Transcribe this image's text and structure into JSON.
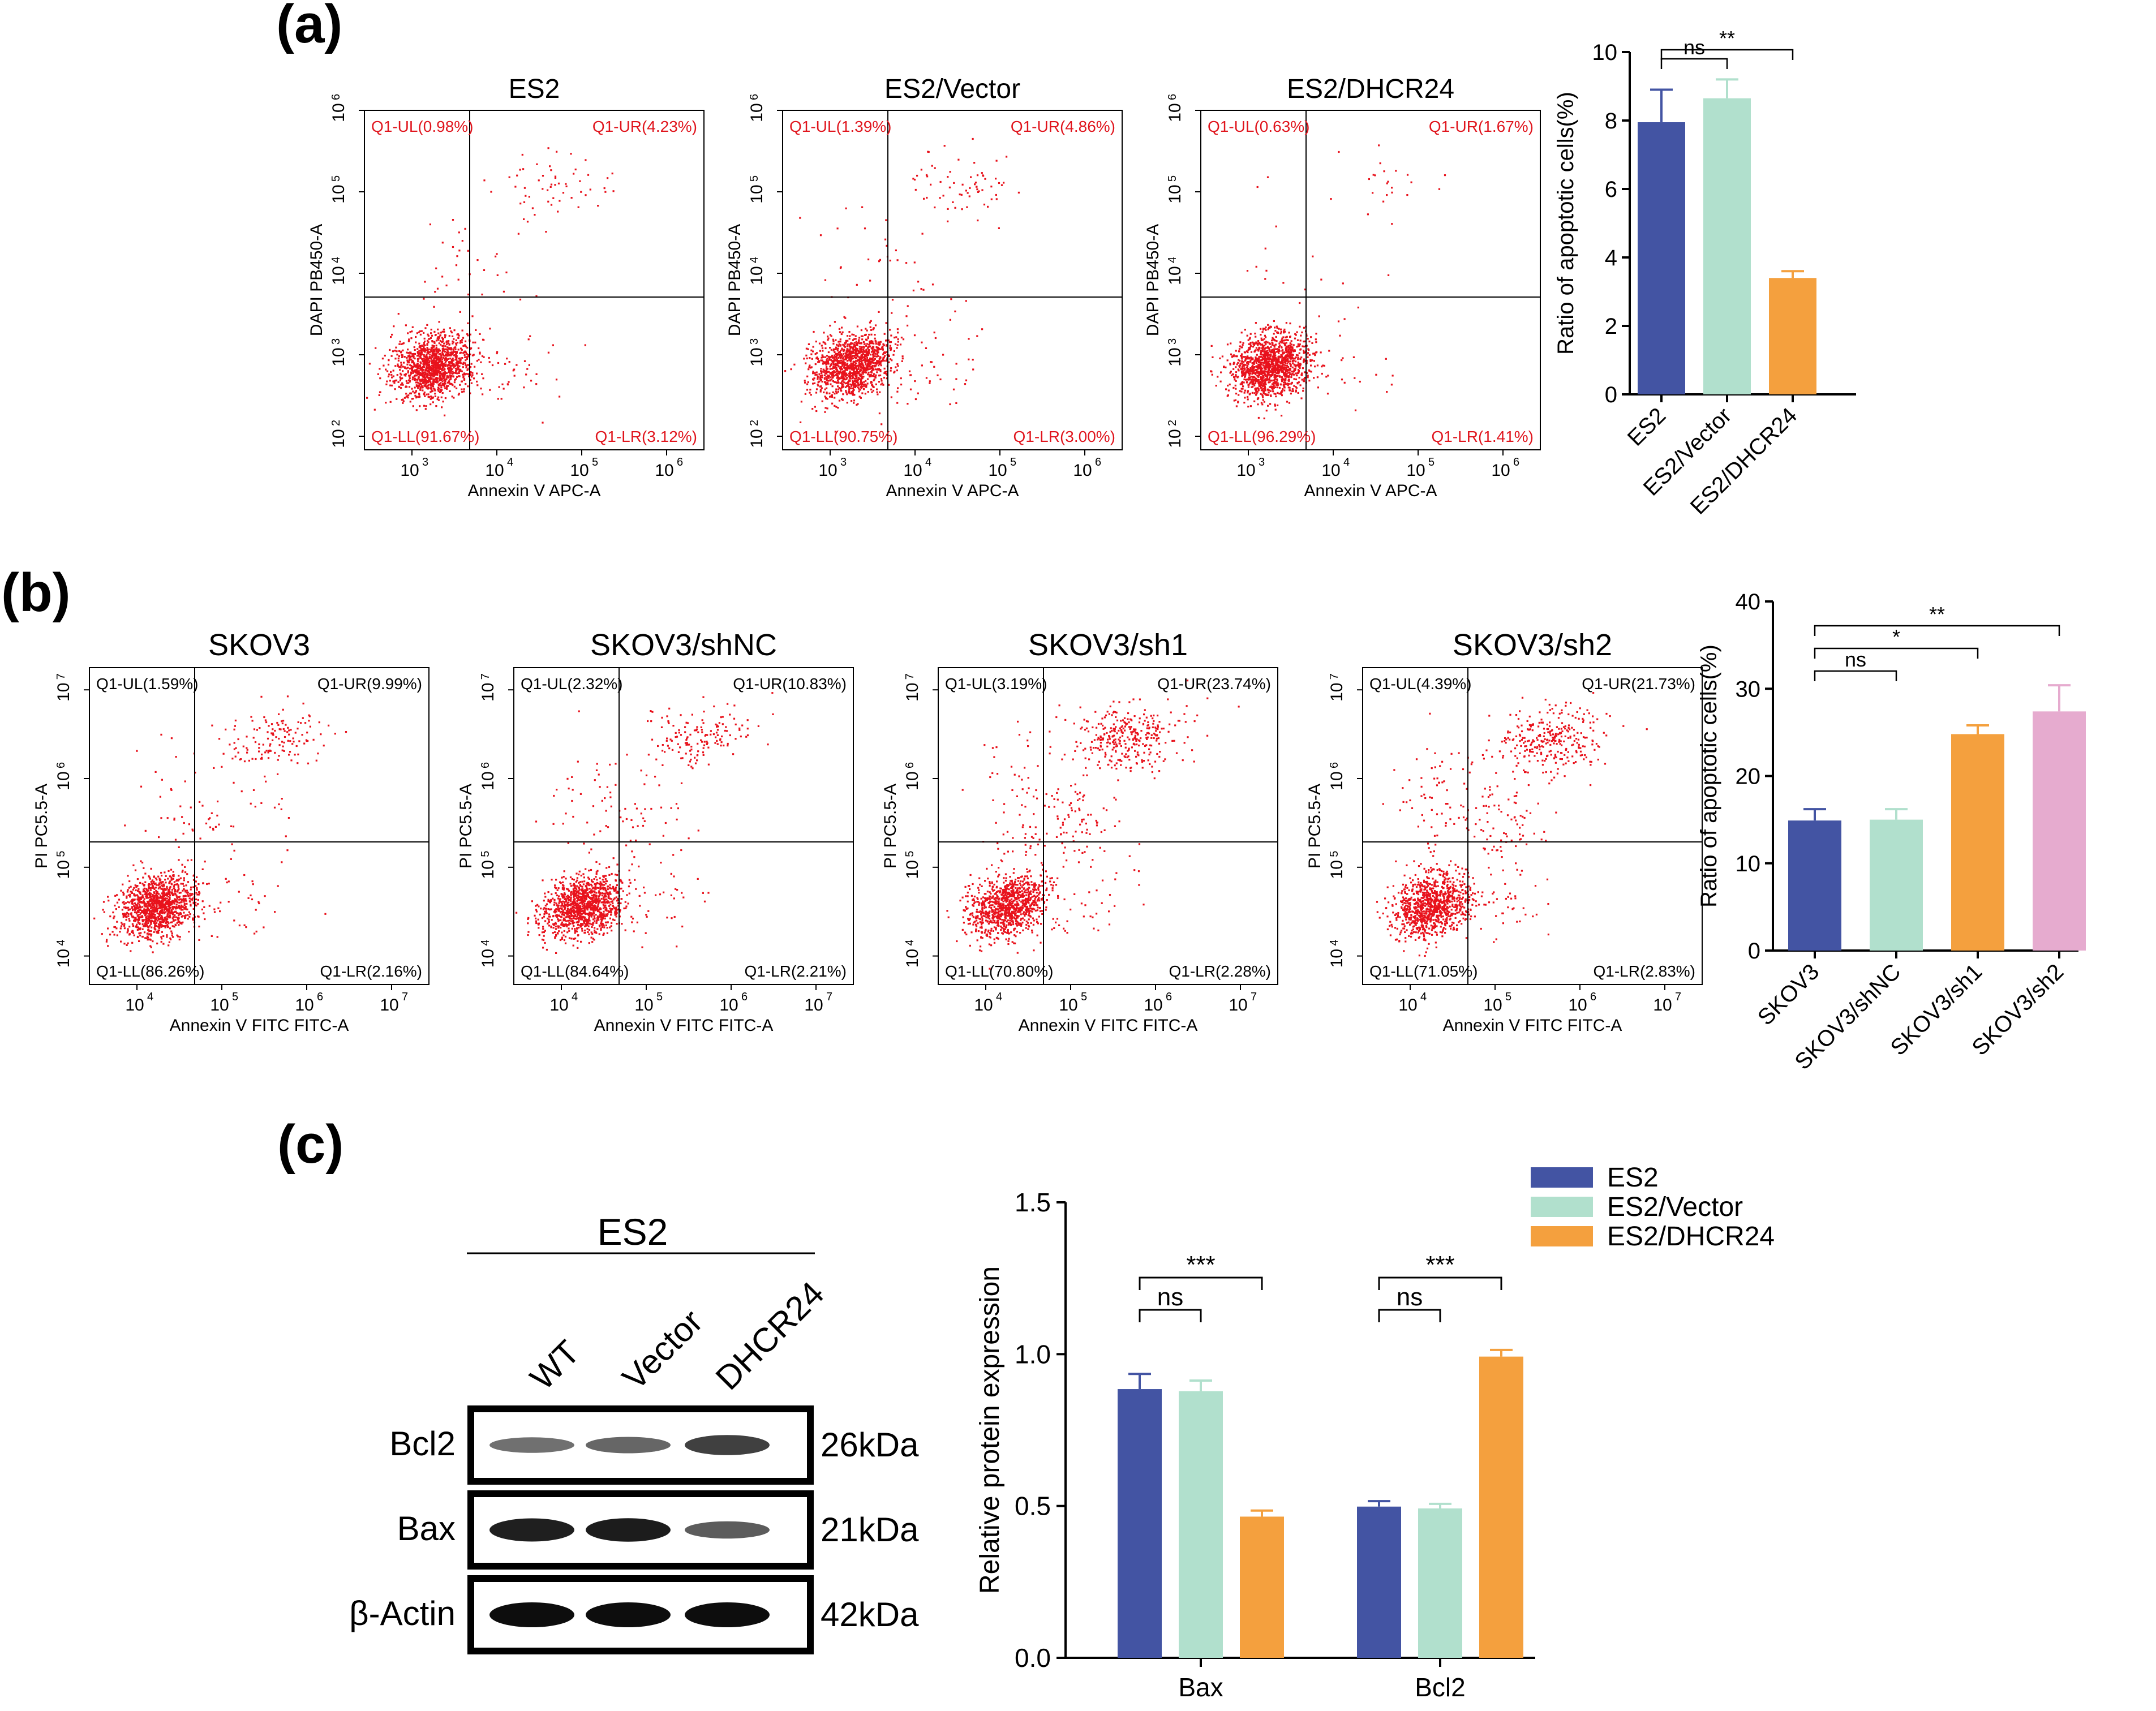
{
  "colors": {
    "es2": "#4354a3",
    "vector": "#b1e0cd",
    "dhcr24": "#f4a03e",
    "sh2": "#e6abcf",
    "dots": "#e8121c",
    "quad_label_red": "#e0151d",
    "axis": "#111111"
  },
  "panel_labels": {
    "a": "(a)",
    "b": "(b)",
    "c": "(c)"
  },
  "flow_plots": [
    {
      "title": "ES2",
      "ylabel": "DAPI PB450-A",
      "xlabel": "Annexin V APC-A",
      "ul": "Q1-UL(0.98%)",
      "ur": "Q1-UR(4.23%)",
      "ll": "Q1-LL(91.67%)",
      "lr": "Q1-LR(3.12%)",
      "xticks": [
        "10",
        "10",
        "10",
        "10"
      ],
      "xexp": [
        "3",
        "4",
        "5",
        "6"
      ],
      "yticks": [
        "10",
        "10",
        "10",
        "10",
        "10"
      ],
      "yexp": [
        "2",
        "3",
        "4",
        "5",
        "6"
      ]
    },
    {
      "title": "ES2/Vector",
      "ylabel": "DAPI PB450-A",
      "xlabel": "Annexin V APC-A",
      "ul": "Q1-UL(1.39%)",
      "ur": "Q1-UR(4.86%)",
      "ll": "Q1-LL(90.75%)",
      "lr": "Q1-LR(3.00%)",
      "xticks": [
        "10",
        "10",
        "10",
        "10"
      ],
      "xexp": [
        "3",
        "4",
        "5",
        "6"
      ],
      "yticks": [
        "10",
        "10",
        "10",
        "10",
        "10"
      ],
      "yexp": [
        "2",
        "3",
        "4",
        "5",
        "6"
      ]
    },
    {
      "title": "ES2/DHCR24",
      "ylabel": "DAPI PB450-A",
      "xlabel": "Annexin V APC-A",
      "ul": "Q1-UL(0.63%)",
      "ur": "Q1-UR(1.67%)",
      "ll": "Q1-LL(96.29%)",
      "lr": "Q1-LR(1.41%)",
      "xticks": [
        "10",
        "10",
        "10",
        "10"
      ],
      "xexp": [
        "3",
        "4",
        "5",
        "6"
      ],
      "yticks": [
        "10",
        "10",
        "10",
        "10",
        "10"
      ],
      "yexp": [
        "2",
        "3",
        "4",
        "5",
        "6"
      ]
    },
    {
      "title": "SKOV3",
      "ylabel": "PI PC5.5-A",
      "xlabel": "Annexin V FITC FITC-A",
      "ul": "Q1-UL(1.59%)",
      "ur": "Q1-UR(9.99%)",
      "ll": "Q1-LL(86.26%)",
      "lr": "Q1-LR(2.16%)",
      "xticks": [
        "10",
        "10",
        "10",
        "10"
      ],
      "xexp": [
        "4",
        "5",
        "6",
        "7"
      ],
      "yticks": [
        "10",
        "10",
        "10",
        "10"
      ],
      "yexp": [
        "4",
        "5",
        "6",
        "7"
      ]
    },
    {
      "title": "SKOV3/shNC",
      "ylabel": "PI PC5.5-A",
      "xlabel": "Annexin V FITC FITC-A",
      "ul": "Q1-UL(2.32%)",
      "ur": "Q1-UR(10.83%)",
      "ll": "Q1-LL(84.64%)",
      "lr": "Q1-LR(2.21%)",
      "xticks": [
        "10",
        "10",
        "10",
        "10"
      ],
      "xexp": [
        "4",
        "5",
        "6",
        "7"
      ],
      "yticks": [
        "10",
        "10",
        "10",
        "10"
      ],
      "yexp": [
        "4",
        "5",
        "6",
        "7"
      ]
    },
    {
      "title": "SKOV3/sh1",
      "ylabel": "PI PC5.5-A",
      "xlabel": "Annexin V FITC FITC-A",
      "ul": "Q1-UL(3.19%)",
      "ur": "Q1-UR(23.74%)",
      "ll": "Q1-LL(70.80%)",
      "lr": "Q1-LR(2.28%)",
      "xticks": [
        "10",
        "10",
        "10",
        "10"
      ],
      "xexp": [
        "4",
        "5",
        "6",
        "7"
      ],
      "yticks": [
        "10",
        "10",
        "10",
        "10"
      ],
      "yexp": [
        "4",
        "5",
        "6",
        "7"
      ]
    },
    {
      "title": "SKOV3/sh2",
      "ylabel": "PI PC5.5-A",
      "xlabel": "Annexin V FITC FITC-A",
      "ul": "Q1-UL(4.39%)",
      "ur": "Q1-UR(21.73%)",
      "ll": "Q1-LL(71.05%)",
      "lr": "Q1-LR(2.83%)",
      "xticks": [
        "10",
        "10",
        "10",
        "10"
      ],
      "xexp": [
        "4",
        "5",
        "6",
        "7"
      ],
      "yticks": [
        "10",
        "10",
        "10",
        "10"
      ],
      "yexp": [
        "4",
        "5",
        "6",
        "7"
      ]
    }
  ],
  "western_blot": {
    "group_label": "ES2",
    "lanes": [
      "WT",
      "Vector",
      "DHCR24"
    ],
    "rows": [
      {
        "protein": "Bcl2",
        "size": "26kDa",
        "intensity": [
          0.45,
          0.5,
          0.72
        ]
      },
      {
        "protein": "Bax",
        "size": "21kDa",
        "intensity": [
          0.9,
          0.92,
          0.55
        ]
      },
      {
        "protein": "β-Actin",
        "size": "42kDa",
        "intensity": [
          1.0,
          1.0,
          1.0
        ]
      }
    ]
  },
  "chart_data": [
    {
      "type": "bar",
      "title": "",
      "categories": [
        "ES2",
        "ES2/Vector",
        "ES2/DHCR24"
      ],
      "values": [
        7.95,
        8.65,
        3.4
      ],
      "errors": [
        0.95,
        0.55,
        0.2
      ],
      "ylabel": "Ratio of apoptotic cells(%)",
      "xlabel": "",
      "ylim": [
        0,
        10
      ],
      "yticks": [
        "0",
        "2",
        "4",
        "6",
        "8",
        "10"
      ],
      "significance": [
        {
          "from": 0,
          "to": 1,
          "label": "ns"
        },
        {
          "from": 0,
          "to": 2,
          "label": "**"
        }
      ]
    },
    {
      "type": "bar",
      "title": "",
      "categories": [
        "SKOV3",
        "SKOV3/shNC",
        "SKOV3/sh1",
        "SKOV3/sh2"
      ],
      "values": [
        14.9,
        15.0,
        24.8,
        27.4
      ],
      "errors": [
        1.3,
        1.2,
        1.0,
        3.0
      ],
      "ylabel": "Ratio of apoptotic cells(%)",
      "xlabel": "",
      "ylim": [
        0,
        40
      ],
      "yticks": [
        "0",
        "10",
        "20",
        "30",
        "40"
      ],
      "significance": [
        {
          "from": 0,
          "to": 1,
          "label": "ns"
        },
        {
          "from": 0,
          "to": 2,
          "label": "*"
        },
        {
          "from": 0,
          "to": 3,
          "label": "**"
        }
      ]
    },
    {
      "type": "bar",
      "title": "",
      "categories": [
        "Bax",
        "Bcl2"
      ],
      "series": [
        {
          "name": "ES2",
          "values": [
            0.885,
            0.498
          ],
          "errors": [
            0.05,
            0.018
          ]
        },
        {
          "name": "ES2/Vector",
          "values": [
            0.878,
            0.492
          ],
          "errors": [
            0.035,
            0.015
          ]
        },
        {
          "name": "ES2/DHCR24",
          "values": [
            0.465,
            0.992
          ],
          "errors": [
            0.02,
            0.022
          ]
        }
      ],
      "ylabel": "Relative protein expression",
      "xlabel": "",
      "ylim": [
        0,
        1.5
      ],
      "yticks": [
        "0.0",
        "0.5",
        "1.0",
        "1.5"
      ],
      "legend_position": "top-right",
      "significance": [
        {
          "group": 0,
          "from": 0,
          "to": 1,
          "label": "ns"
        },
        {
          "group": 0,
          "from": 0,
          "to": 2,
          "label": "***"
        },
        {
          "group": 1,
          "from": 0,
          "to": 1,
          "label": "ns"
        },
        {
          "group": 1,
          "from": 0,
          "to": 2,
          "label": "***"
        }
      ]
    }
  ]
}
